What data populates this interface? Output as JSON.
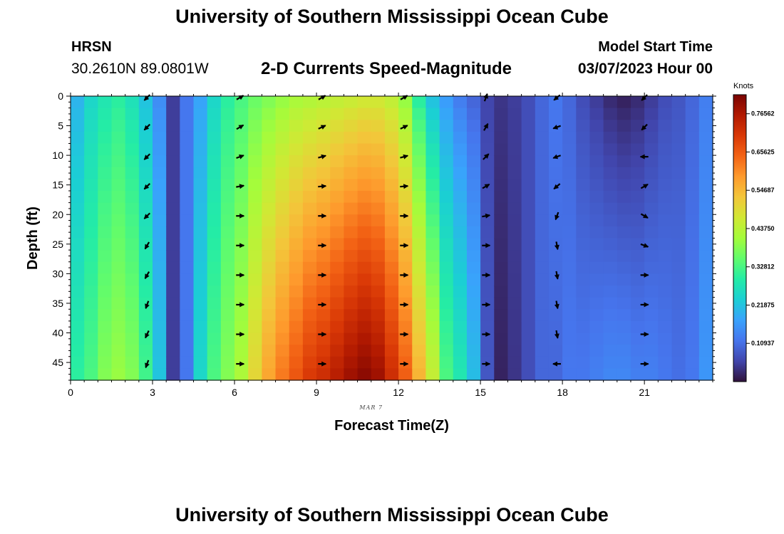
{
  "header": {
    "title": "University of Southern Mississippi Ocean Cube",
    "station": "HRSN",
    "coordinates": "30.2610N  89.0801W",
    "subtitle": "2-D Currents Speed-Magnitude",
    "model_start_label": "Model Start Time",
    "model_start_value": "03/07/2023 Hour 00",
    "repeat_title": "University of Southern Mississippi Ocean Cube"
  },
  "chart_data": {
    "type": "heatmap",
    "xlabel": "Forecast Time(Z)",
    "ylabel": "Depth (ft)",
    "date_label": "MAR 7",
    "xlim": [
      0,
      23.5
    ],
    "ylim": [
      0,
      48
    ],
    "x_ticks": [
      0,
      3,
      6,
      9,
      12,
      15,
      18,
      21
    ],
    "y_ticks": [
      0,
      5,
      10,
      15,
      20,
      25,
      30,
      35,
      40,
      45
    ],
    "colorbar": {
      "unit": "Knots",
      "range": [
        0,
        0.82
      ],
      "ticks": [
        "0.76562",
        "0.65625",
        "0.54687",
        "0.43750",
        "0.32812",
        "0.21875",
        "0.10937"
      ],
      "tick_values": [
        0.76562,
        0.65625,
        0.54687,
        0.4375,
        0.32812,
        0.21875,
        0.10937
      ],
      "colormap": [
        "#30123b",
        "#4145ab",
        "#4675ed",
        "#39a2fc",
        "#1bcfd4",
        "#24eca6",
        "#61fc6c",
        "#a4fc3b",
        "#d1e834",
        "#f3c63a",
        "#fe9b2d",
        "#f36315",
        "#d93806",
        "#b11901",
        "#7a0402"
      ]
    },
    "hours": [
      0.25,
      0.75,
      1.25,
      1.75,
      2.25,
      2.75,
      3.25,
      3.75,
      4.25,
      4.75,
      5.25,
      5.75,
      6.25,
      6.75,
      7.25,
      7.75,
      8.25,
      8.75,
      9.25,
      9.75,
      10.25,
      10.75,
      11.25,
      11.75,
      12.25,
      12.75,
      13.25,
      13.75,
      14.25,
      14.75,
      15.25,
      15.75,
      16.25,
      16.75,
      17.25,
      17.75,
      18.25,
      18.75,
      19.25,
      19.75,
      20.25,
      20.75,
      21.25,
      21.75,
      22.25,
      22.75,
      23.25
    ],
    "depths": [
      0,
      2,
      4,
      6,
      8,
      10,
      12,
      14,
      16,
      18,
      20,
      22,
      24,
      26,
      28,
      30,
      32,
      34,
      36,
      38,
      40,
      42,
      44,
      46
    ],
    "surface_speed": [
      0.2,
      0.25,
      0.28,
      0.3,
      0.27,
      0.22,
      0.15,
      0.05,
      0.12,
      0.18,
      0.25,
      0.3,
      0.33,
      0.36,
      0.38,
      0.4,
      0.42,
      0.43,
      0.44,
      0.45,
      0.46,
      0.47,
      0.47,
      0.45,
      0.4,
      0.3,
      0.22,
      0.17,
      0.13,
      0.1,
      0.06,
      0.04,
      0.05,
      0.07,
      0.1,
      0.12,
      0.1,
      0.07,
      0.05,
      0.03,
      0.02,
      0.03,
      0.05,
      0.07,
      0.08,
      0.1,
      0.13
    ],
    "bottom_speed": [
      0.3,
      0.33,
      0.38,
      0.4,
      0.38,
      0.32,
      0.22,
      0.05,
      0.12,
      0.25,
      0.33,
      0.38,
      0.42,
      0.5,
      0.57,
      0.62,
      0.66,
      0.7,
      0.72,
      0.75,
      0.78,
      0.8,
      0.78,
      0.72,
      0.65,
      0.55,
      0.45,
      0.33,
      0.28,
      0.21,
      0.08,
      0.02,
      0.04,
      0.07,
      0.1,
      0.1,
      0.12,
      0.12,
      0.13,
      0.14,
      0.14,
      0.13,
      0.13,
      0.12,
      0.11,
      0.12,
      0.16
    ],
    "vector_hours": [
      2.8,
      6.2,
      9.2,
      12.2,
      15.2,
      17.8,
      21.0
    ],
    "vector_depths": [
      0,
      5,
      10,
      15,
      20,
      25,
      30,
      35,
      40,
      45
    ],
    "vector_directions_deg": [
      [
        225,
        225,
        225,
        225,
        225,
        210,
        210,
        200,
        205,
        200
      ],
      [
        60,
        60,
        70,
        80,
        90,
        90,
        90,
        90,
        90,
        90
      ],
      [
        60,
        65,
        75,
        85,
        90,
        90,
        90,
        90,
        90,
        90
      ],
      [
        60,
        65,
        75,
        85,
        90,
        90,
        90,
        90,
        90,
        90
      ],
      [
        20,
        30,
        45,
        60,
        80,
        90,
        90,
        90,
        90,
        90
      ],
      [
        230,
        250,
        250,
        230,
        200,
        170,
        170,
        170,
        170,
        270
      ],
      [
        225,
        225,
        270,
        60,
        120,
        110,
        90,
        90,
        90,
        90
      ]
    ]
  }
}
